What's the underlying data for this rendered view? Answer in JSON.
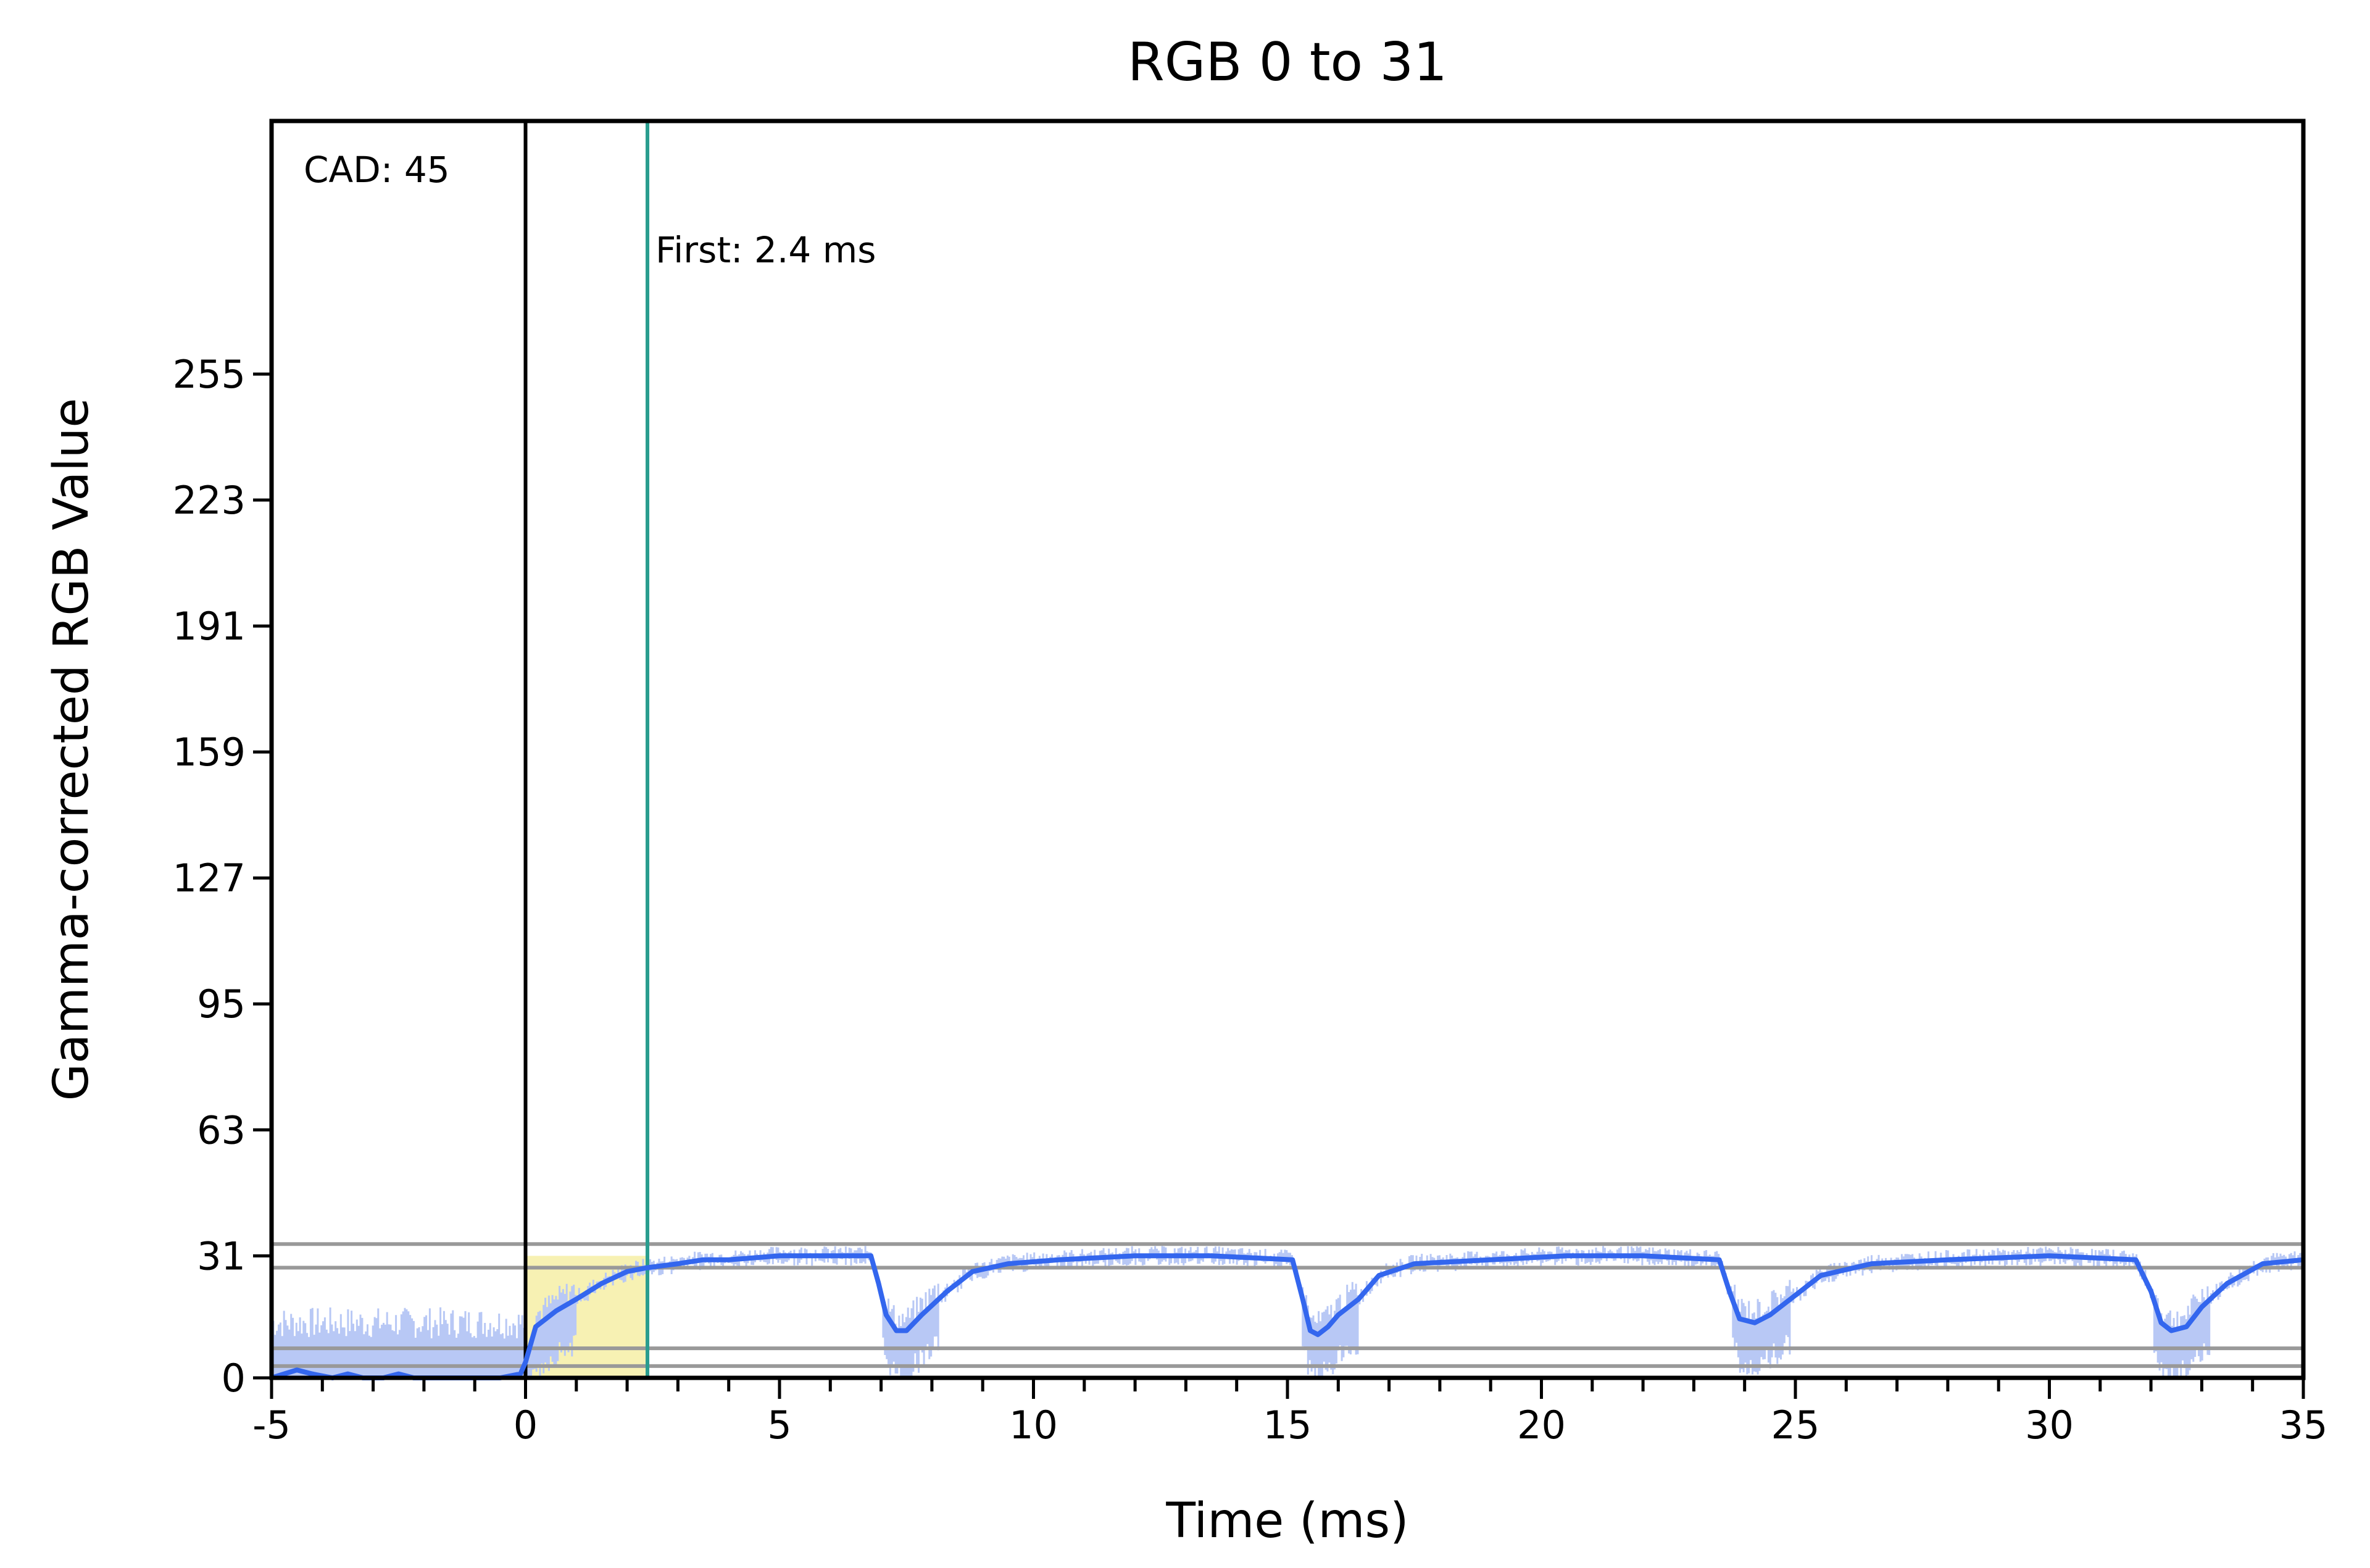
{
  "chart_data": {
    "type": "line",
    "title": "RGB 0 to 31",
    "xlabel": "Time (ms)",
    "ylabel": "Gamma-corrected RGB Value",
    "xlim": [
      -5,
      35
    ],
    "ylim": [
      0,
      310
    ],
    "x_ticks": [
      -5,
      0,
      5,
      10,
      15,
      20,
      25,
      30,
      35
    ],
    "x_tick_labels": [
      "-5",
      "0",
      "5",
      "10",
      "15",
      "20",
      "25",
      "30",
      "35"
    ],
    "x_minor_step": 1,
    "y_ticks": [
      0,
      31,
      63,
      95,
      127,
      159,
      191,
      223,
      255
    ],
    "y_tick_labels": [
      "0",
      "31",
      "63",
      "95",
      "127",
      "159",
      "191",
      "223",
      "255"
    ],
    "grid": false,
    "reference_lines": [
      {
        "y": 3
      },
      {
        "y": 28
      },
      {
        "y": 34
      },
      {
        "y": 7.5
      }
    ],
    "markers": [
      {
        "x": 0,
        "color": "#000000"
      },
      {
        "x": 2.4,
        "color": "#2a9d8f",
        "label": "First: 2.4 ms"
      }
    ],
    "annotation": "CAD: 45",
    "shaded_region": {
      "x": [
        0,
        2.4
      ],
      "color": "#f5eea0"
    },
    "series": [
      {
        "color": "#3366ee",
        "x": [
          -5,
          -4.5,
          -4.2,
          -3.8,
          -3.5,
          -3.2,
          -2.8,
          -2.5,
          -2.2,
          -1.8,
          -1.5,
          -1.0,
          -0.5,
          -0.1,
          0.0,
          0.2,
          0.6,
          1.0,
          1.5,
          2.0,
          2.4,
          3.0,
          3.5,
          4.0,
          5.0,
          6.0,
          6.8,
          6.95,
          7.1,
          7.3,
          7.5,
          7.8,
          8.3,
          8.8,
          9.5,
          10.5,
          12,
          13.5,
          15.1,
          15.3,
          15.45,
          15.6,
          15.8,
          16.0,
          16.4,
          16.8,
          17.5,
          19,
          20.5,
          22,
          23.5,
          23.7,
          23.9,
          24.2,
          24.5,
          24.9,
          25.5,
          26.5,
          28,
          30,
          31.7,
          32.0,
          32.2,
          32.4,
          32.7,
          33.0,
          33.5,
          34.2,
          35
        ],
        "y": [
          0,
          2,
          1,
          0,
          1,
          0,
          0,
          1,
          0,
          0,
          0,
          0,
          0,
          1,
          4,
          13,
          17,
          20,
          24,
          27,
          28,
          29,
          30,
          30,
          31,
          31,
          31,
          24,
          16,
          12,
          12,
          16,
          22,
          27,
          29,
          30,
          31,
          31,
          30,
          20,
          12,
          11,
          13,
          16,
          20,
          26,
          29,
          30,
          31,
          31,
          30,
          22,
          15,
          14,
          16,
          20,
          26,
          29,
          30,
          31,
          30,
          22,
          14,
          12,
          13,
          18,
          24,
          29,
          30
        ]
      }
    ]
  }
}
